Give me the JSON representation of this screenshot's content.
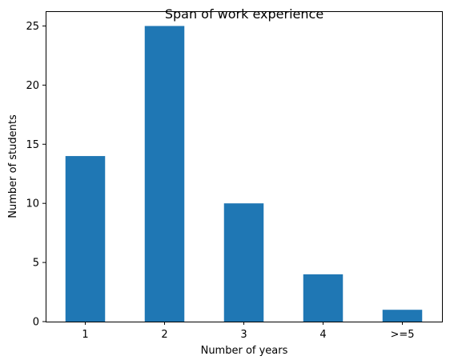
{
  "chart_data": {
    "type": "bar",
    "title": "Span of work experience",
    "xlabel": "Number of years",
    "ylabel": "Number of students",
    "categories": [
      "1",
      "2",
      "3",
      "4",
      ">=5"
    ],
    "values": [
      14,
      25,
      10,
      4,
      1
    ],
    "ylim": [
      0,
      26.25
    ],
    "yticks": [
      0,
      5,
      10,
      15,
      20,
      25
    ],
    "grid": false,
    "bar_color": "#1f77b4"
  }
}
